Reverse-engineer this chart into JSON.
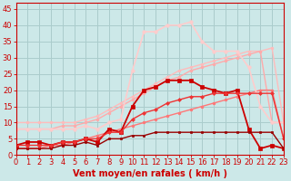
{
  "background_color": "#cce8e8",
  "grid_color": "#aacccc",
  "xlabel": "Vent moyen/en rafales ( km/h )",
  "xlabel_color": "#cc0000",
  "xlabel_fontsize": 7,
  "tick_color": "#cc0000",
  "tick_fontsize": 6,
  "xlim": [
    0,
    23
  ],
  "ylim": [
    0,
    47
  ],
  "yticks": [
    0,
    5,
    10,
    15,
    20,
    25,
    30,
    35,
    40,
    45
  ],
  "xticks": [
    0,
    1,
    2,
    3,
    4,
    5,
    6,
    7,
    8,
    9,
    10,
    11,
    12,
    13,
    14,
    15,
    16,
    17,
    18,
    19,
    20,
    21,
    22,
    23
  ],
  "lines": [
    {
      "x": [
        0,
        1,
        2,
        3,
        4,
        5,
        6,
        7,
        8,
        9,
        10,
        11,
        12,
        13,
        14,
        15,
        16,
        17,
        18,
        19,
        20,
        21,
        22,
        23
      ],
      "y": [
        10,
        10,
        10,
        10,
        10,
        10,
        11,
        12,
        14,
        16,
        18,
        20,
        22,
        24,
        26,
        27,
        28,
        29,
        30,
        31,
        32,
        32,
        33,
        10
      ],
      "color": "#ffbbbb",
      "lw": 1.0,
      "marker": "o",
      "ms": 2.0
    },
    {
      "x": [
        0,
        1,
        2,
        3,
        4,
        5,
        6,
        7,
        8,
        9,
        10,
        11,
        12,
        13,
        14,
        15,
        16,
        17,
        18,
        19,
        20,
        21,
        22,
        23
      ],
      "y": [
        8,
        8,
        8,
        8,
        9,
        9,
        10,
        11,
        13,
        15,
        17,
        19,
        21,
        23,
        24,
        26,
        27,
        28,
        29,
        30,
        31,
        32,
        10,
        10
      ],
      "color": "#ffaaaa",
      "lw": 1.0,
      "marker": "o",
      "ms": 2.0
    },
    {
      "x": [
        0,
        1,
        2,
        3,
        4,
        5,
        6,
        7,
        8,
        9,
        10,
        11,
        12,
        13,
        14,
        15,
        16,
        17,
        18,
        19,
        20,
        21,
        22,
        23
      ],
      "y": [
        2,
        2,
        2,
        3,
        3,
        4,
        5,
        6,
        7,
        8,
        9,
        10,
        11,
        12,
        13,
        14,
        15,
        16,
        17,
        18,
        19,
        20,
        20,
        5
      ],
      "color": "#ff7777",
      "lw": 1.0,
      "marker": "o",
      "ms": 2.0
    },
    {
      "x": [
        0,
        1,
        2,
        3,
        4,
        5,
        6,
        7,
        8,
        9,
        10,
        11,
        12,
        13,
        14,
        15,
        16,
        17,
        18,
        19,
        20,
        21,
        22,
        23
      ],
      "y": [
        8,
        8,
        8,
        8,
        8,
        8,
        9,
        8,
        10,
        11,
        26,
        38,
        38,
        40,
        40,
        41,
        35,
        32,
        32,
        32,
        27,
        15,
        10,
        10
      ],
      "color": "#ffcccc",
      "lw": 1.2,
      "marker": "o",
      "ms": 2.5
    },
    {
      "x": [
        0,
        1,
        2,
        3,
        4,
        5,
        6,
        7,
        8,
        9,
        10,
        11,
        12,
        13,
        14,
        15,
        16,
        17,
        18,
        19,
        20,
        21,
        22,
        23
      ],
      "y": [
        3,
        4,
        4,
        3,
        4,
        4,
        5,
        4,
        8,
        7,
        15,
        20,
        21,
        23,
        23,
        23,
        21,
        20,
        19,
        20,
        8,
        2,
        3,
        2
      ],
      "color": "#cc0000",
      "lw": 1.3,
      "marker": "s",
      "ms": 2.5
    },
    {
      "x": [
        0,
        1,
        2,
        3,
        4,
        5,
        6,
        7,
        8,
        9,
        10,
        11,
        12,
        13,
        14,
        15,
        16,
        17,
        18,
        19,
        20,
        21,
        22,
        23
      ],
      "y": [
        2,
        2,
        2,
        2,
        3,
        3,
        4,
        3,
        5,
        5,
        6,
        6,
        7,
        7,
        7,
        7,
        7,
        7,
        7,
        7,
        7,
        7,
        7,
        2
      ],
      "color": "#990000",
      "lw": 1.0,
      "marker": "s",
      "ms": 1.8
    },
    {
      "x": [
        0,
        1,
        2,
        3,
        4,
        5,
        6,
        7,
        8,
        9,
        10,
        11,
        12,
        13,
        14,
        15,
        16,
        17,
        18,
        19,
        20,
        21,
        22,
        23
      ],
      "y": [
        3,
        3,
        3,
        3,
        4,
        4,
        5,
        5,
        7,
        7,
        11,
        13,
        14,
        16,
        17,
        18,
        18,
        19,
        19,
        19,
        19,
        19,
        19,
        5
      ],
      "color": "#ee3333",
      "lw": 1.0,
      "marker": "D",
      "ms": 2.0
    }
  ]
}
